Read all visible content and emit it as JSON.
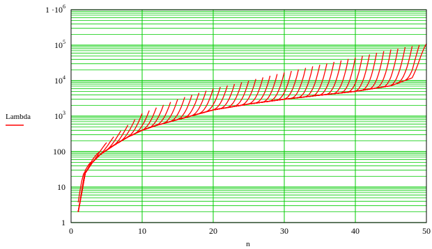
{
  "chart_data": {
    "type": "line",
    "title": "",
    "xlabel": "n",
    "ylabel": "",
    "y_scale": "log",
    "xlim": [
      0,
      50
    ],
    "ylim": [
      1,
      1000000
    ],
    "grid": true,
    "legend_position": "left",
    "colors": {
      "series": "#ff0000",
      "major_grid": "#00cc00",
      "minor_grid": "#00cc00",
      "frame": "#000000",
      "background": "#ffffff"
    },
    "x_ticks": [
      "0",
      "10",
      "20",
      "30",
      "40",
      "50"
    ],
    "y_ticks": [
      {
        "base": "1",
        "sup": ""
      },
      {
        "base": "10",
        "sup": ""
      },
      {
        "base": "100",
        "sup": ""
      },
      {
        "base": "10",
        "sup": "3"
      },
      {
        "base": "10",
        "sup": "4"
      },
      {
        "base": "10",
        "sup": "5"
      },
      {
        "base": "1 ·10",
        "sup": "6"
      }
    ],
    "y_tick_values": [
      1,
      10,
      100,
      1000,
      10000,
      100000,
      1000000
    ],
    "series": [
      {
        "name": "Lambda",
        "family": "one curve per ending index m = 2..50",
        "base_curve": {
          "x": [
            1,
            2,
            3,
            4,
            5,
            6,
            8,
            10,
            12,
            15,
            20,
            25,
            30,
            35,
            40,
            45,
            48,
            50
          ],
          "y": [
            2,
            25,
            50,
            80,
            110,
            150,
            260,
            400,
            550,
            800,
            1500,
            2200,
            3000,
            3900,
            5000,
            7200,
            12000,
            60000
          ]
        },
        "fan_end_values": {
          "x": [
            2,
            5,
            10,
            15,
            20,
            25,
            30,
            35,
            40,
            45,
            50
          ],
          "y": [
            28,
            180,
            1200,
            3000,
            6000,
            10000,
            17000,
            28000,
            45000,
            75000,
            110000
          ]
        }
      }
    ]
  }
}
